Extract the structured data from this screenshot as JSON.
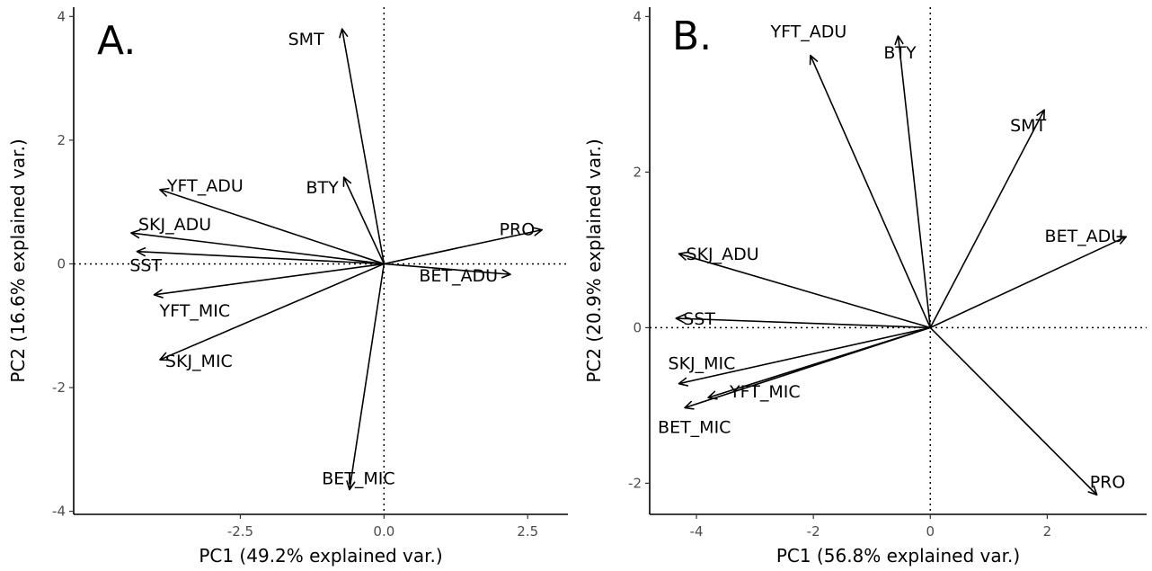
{
  "chart_data": [
    {
      "type": "biplot",
      "panel_label": "A.",
      "xlabel": "PC1 (49.2% explained var.)",
      "ylabel": "PC2 (16.6% explained var.)",
      "xlim": [
        -5.4,
        3.2
      ],
      "ylim": [
        -4.05,
        4.15
      ],
      "xticks": [
        -2.5,
        0.0,
        2.5
      ],
      "xtick_labels": [
        "-2.5",
        "0.0",
        "2.5"
      ],
      "yticks": [
        -4,
        -2,
        0,
        2,
        4
      ],
      "ytick_labels": [
        "-4",
        "-2",
        "0",
        "2",
        "4"
      ],
      "grid": false,
      "reference_lines": {
        "x": 0,
        "y": 0
      },
      "vectors": [
        {
          "name": "SMT",
          "x": -0.73,
          "y": 3.8
        },
        {
          "name": "BTY",
          "x": -0.7,
          "y": 1.4
        },
        {
          "name": "YFT_ADU",
          "x": -3.9,
          "y": 1.2
        },
        {
          "name": "SKJ_ADU",
          "x": -4.4,
          "y": 0.5
        },
        {
          "name": "SST",
          "x": -4.3,
          "y": 0.2
        },
        {
          "name": "YFT_MIC",
          "x": -4.0,
          "y": -0.5
        },
        {
          "name": "SKJ_MIC",
          "x": -3.9,
          "y": -1.55
        },
        {
          "name": "BET_MIC",
          "x": -0.6,
          "y": -3.65
        },
        {
          "name": "PRO",
          "x": 2.75,
          "y": 0.55
        },
        {
          "name": "BET_ADU",
          "x": 2.2,
          "y": -0.17
        }
      ]
    },
    {
      "type": "biplot",
      "panel_label": "B.",
      "xlabel": "PC1 (56.8% explained var.)",
      "ylabel": "PC2 (20.9% explained var.)",
      "xlim": [
        -4.8,
        3.7
      ],
      "ylim": [
        -2.4,
        4.12
      ],
      "xticks": [
        -4,
        -2,
        0,
        2
      ],
      "xtick_labels": [
        "-4",
        "-2",
        "0",
        "2"
      ],
      "yticks": [
        -2,
        0,
        2,
        4
      ],
      "ytick_labels": [
        "-2",
        "0",
        "2",
        "4"
      ],
      "grid": false,
      "reference_lines": {
        "x": 0,
        "y": 0
      },
      "vectors": [
        {
          "name": "YFT_ADU",
          "x": -2.05,
          "y": 3.5
        },
        {
          "name": "BTY",
          "x": -0.55,
          "y": 3.75
        },
        {
          "name": "SMT",
          "x": 1.95,
          "y": 2.8
        },
        {
          "name": "BET_ADU",
          "x": 3.35,
          "y": 1.17
        },
        {
          "name": "SKJ_ADU",
          "x": -4.3,
          "y": 0.95
        },
        {
          "name": "SST",
          "x": -4.35,
          "y": 0.12
        },
        {
          "name": "SKJ_MIC",
          "x": -4.3,
          "y": -0.72
        },
        {
          "name": "YFT_MIC",
          "x": -3.8,
          "y": -0.9
        },
        {
          "name": "BET_MIC",
          "x": -4.2,
          "y": -1.03
        },
        {
          "name": "PRO",
          "x": 2.85,
          "y": -2.15
        }
      ]
    }
  ]
}
